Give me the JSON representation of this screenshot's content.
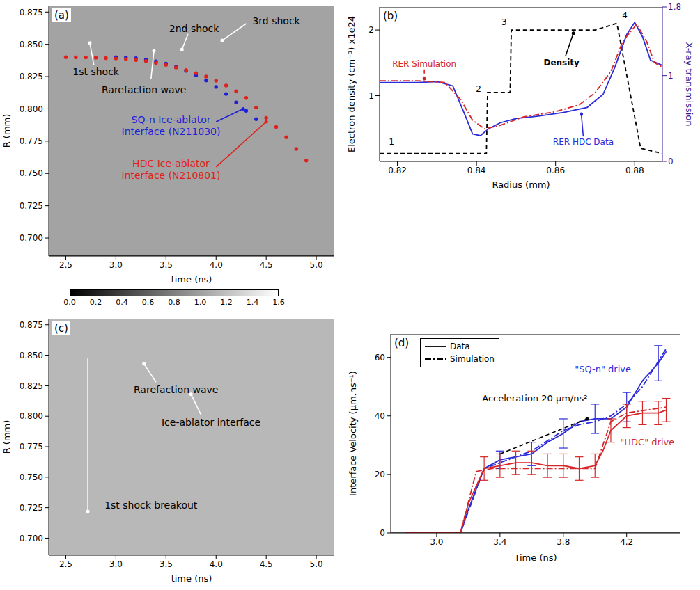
{
  "chart_data": [
    {
      "type": "scatter",
      "panel": "(a)",
      "x_label": "time (ns)",
      "y_label": "R (mm)",
      "xlim": [
        2.33,
        5.18
      ],
      "xticks": [
        2.5,
        {
          "value": 3,
          "label": "3.0"
        },
        3.5,
        {
          "value": 4,
          "label": "4.0"
        },
        4.5,
        {
          "value": 5,
          "label": "5.0"
        }
      ],
      "ylim": [
        0.686,
        0.88
      ],
      "yticks": [
        {
          "value": 0.7,
          "label": "0.700"
        },
        0.725,
        {
          "value": 0.75,
          "label": "0.750"
        },
        0.775,
        {
          "value": 0.8,
          "label": "0.800"
        },
        0.825,
        {
          "value": 0.85,
          "label": "0.850"
        },
        0.875
      ],
      "series": [
        {
          "color": "#1f1fd6",
          "marker": "dot",
          "x": [
            3.0,
            3.1,
            3.2,
            3.3,
            3.4,
            3.5,
            3.6,
            3.7,
            3.8,
            3.9,
            4.0,
            4.1,
            4.2,
            4.3,
            4.4
          ],
          "values": [
            0.84,
            0.8398,
            0.8392,
            0.8382,
            0.8368,
            0.835,
            0.8325,
            0.8295,
            0.826,
            0.822,
            0.817,
            0.8115,
            0.805,
            0.7985,
            0.792
          ]
        },
        {
          "color": "#e0201b",
          "marker": "dot",
          "x": [
            2.5,
            2.6,
            2.7,
            2.8,
            2.9,
            3.0,
            3.1,
            3.2,
            3.3,
            3.4,
            3.5,
            3.6,
            3.7,
            3.8,
            3.9,
            4.0,
            4.1,
            4.2,
            4.3,
            4.4,
            4.5,
            4.6,
            4.7,
            4.8,
            4.9
          ],
          "values": [
            0.84,
            0.8399,
            0.8398,
            0.8396,
            0.8393,
            0.839,
            0.8385,
            0.8378,
            0.837,
            0.8356,
            0.834,
            0.832,
            0.83,
            0.8276,
            0.825,
            0.8218,
            0.818,
            0.8136,
            0.8085,
            0.801,
            0.793,
            0.786,
            0.778,
            0.769,
            0.76
          ]
        }
      ],
      "annotations": [
        {
          "text": "1st shock",
          "x": 2.8,
          "y": 0.829,
          "arrow": [
            [
              2.78,
              0.834
            ],
            [
              2.74,
              0.851
            ]
          ]
        },
        {
          "text": "Rarefaction wave",
          "x": 3.28,
          "y": 0.815,
          "arrow": [
            [
              3.35,
              0.823
            ],
            [
              3.38,
              0.845
            ]
          ]
        },
        {
          "text": "2nd shock",
          "x": 3.78,
          "y": 0.862,
          "arrow": [
            [
              3.72,
              0.858
            ],
            [
              3.66,
              0.846
            ]
          ]
        },
        {
          "text": "3rd shock",
          "x": 4.6,
          "y": 0.868,
          "arrow": [
            [
              4.3,
              0.866
            ],
            [
              4.06,
              0.853
            ]
          ]
        },
        {
          "text": "SQ-n Ice-ablator\nInterface (N211030)",
          "color": "#1f1fd6",
          "x": 3.55,
          "y": 0.787,
          "arrow": [
            [
              4.0,
              0.79
            ],
            [
              4.27,
              0.8
            ]
          ]
        },
        {
          "text": "HDC Ice-ablator\nInterface (N210801)",
          "color": "#e0201b",
          "x": 3.55,
          "y": 0.753,
          "arrow": [
            [
              4.0,
              0.755
            ],
            [
              4.5,
              0.79
            ]
          ]
        }
      ],
      "colorbar": {
        "range": [
          0,
          1.6
        ],
        "ticks": [
          {
            "value": 0,
            "label": "0.0"
          },
          0.2,
          0.4,
          0.6,
          0.8,
          {
            "value": 1,
            "label": "1.0"
          },
          1.2,
          1.4,
          1.6
        ]
      }
    },
    {
      "type": "line",
      "panel": "(b)",
      "x_label": "Radius (mm)",
      "y_label": "Electron density (cm⁻³) x1e24",
      "y2_label": "X-ray transmission",
      "y2_color": "#3b1a91",
      "xlim": [
        0.8155,
        0.887
      ],
      "xticks": [
        0.82,
        0.84,
        0.86,
        0.88
      ],
      "ylim": [
        0,
        2.35
      ],
      "yticks": [
        1,
        2
      ],
      "y2lim": [
        0,
        1.8
      ],
      "y2ticks": [
        0,
        1,
        1.8
      ],
      "series": [
        {
          "color": "#000000",
          "line_style": "dashed",
          "x": [
            0.8155,
            0.8425,
            0.8428,
            0.8485,
            0.8488,
            0.87,
            0.8755,
            0.8815,
            0.887
          ],
          "values": [
            0.12,
            0.12,
            1.05,
            1.05,
            2.0,
            2.0,
            2.1,
            0.2,
            0.12
          ]
        },
        {
          "color": "#2b2bd9",
          "line_style": "solid",
          "axis": "y2",
          "x": [
            0.8155,
            0.825,
            0.83,
            0.834,
            0.837,
            0.839,
            0.841,
            0.843,
            0.846,
            0.85,
            0.856,
            0.862,
            0.868,
            0.872,
            0.875,
            0.878,
            0.88,
            0.882,
            0.884,
            0.887
          ],
          "values": [
            0.92,
            0.92,
            0.93,
            0.88,
            0.55,
            0.32,
            0.3,
            0.38,
            0.45,
            0.5,
            0.53,
            0.57,
            0.63,
            0.78,
            1.1,
            1.48,
            1.62,
            1.45,
            1.18,
            1.12
          ]
        },
        {
          "color": "#d62728",
          "line_style": "dashdot",
          "axis": "y2",
          "x": [
            0.8155,
            0.825,
            0.832,
            0.836,
            0.839,
            0.842,
            0.846,
            0.852,
            0.86,
            0.866,
            0.87,
            0.874,
            0.877,
            0.8805,
            0.883,
            0.885,
            0.887
          ],
          "values": [
            0.94,
            0.94,
            0.92,
            0.72,
            0.48,
            0.38,
            0.42,
            0.52,
            0.58,
            0.66,
            0.8,
            1.05,
            1.4,
            1.6,
            1.4,
            1.15,
            1.1
          ]
        }
      ],
      "annotations": [
        {
          "text": "Density",
          "bold": true,
          "x": 0.8615,
          "y": 1.5,
          "arrow": [
            [
              0.8625,
              1.6
            ],
            [
              0.8645,
              1.95
            ]
          ]
        },
        {
          "text": "RER Simulation",
          "color": "#d62728",
          "x": 0.8268,
          "y": 1.48,
          "arrow": [
            [
              0.8268,
              1.4
            ],
            [
              0.8268,
              1.26
            ]
          ],
          "arrow_style": "dashed"
        },
        {
          "text": "RER HDC Data",
          "color": "#2b2bd9",
          "x": 0.867,
          "y": 0.3,
          "arrow": [
            [
              0.867,
              0.38
            ],
            [
              0.8665,
              0.72
            ]
          ]
        },
        {
          "text": "1",
          "x": 0.8185,
          "y": 0.3
        },
        {
          "text": "2",
          "x": 0.8405,
          "y": 1.1
        },
        {
          "text": "3",
          "x": 0.847,
          "y": 2.12
        },
        {
          "text": "4",
          "x": 0.8775,
          "y": 2.22
        }
      ]
    },
    {
      "type": "image",
      "panel": "(c)",
      "x_label": "time (ns)",
      "y_label": "R (mm)",
      "xlim": [
        2.33,
        5.18
      ],
      "xticks": [
        2.5,
        {
          "value": 3,
          "label": "3.0"
        },
        3.5,
        {
          "value": 4,
          "label": "4.0"
        },
        4.5,
        {
          "value": 5,
          "label": "5.0"
        }
      ],
      "ylim": [
        0.686,
        0.88
      ],
      "yticks": [
        {
          "value": 0.7,
          "label": "0.700"
        },
        0.725,
        {
          "value": 0.75,
          "label": "0.750"
        },
        0.775,
        {
          "value": 0.8,
          "label": "0.800"
        },
        0.825,
        {
          "value": 0.85,
          "label": "0.850"
        },
        0.875
      ],
      "annotations": [
        {
          "text": "Rarefaction wave",
          "x": 3.6,
          "y": 0.822,
          "arrow": [
            [
              3.4,
              0.828
            ],
            [
              3.28,
              0.843
            ]
          ]
        },
        {
          "text": "Ice-ablator interface",
          "x": 3.95,
          "y": 0.795,
          "arrow": [
            [
              3.85,
              0.801
            ],
            [
              3.75,
              0.818
            ]
          ]
        },
        {
          "text": "1st shock breakout",
          "x": 3.35,
          "y": 0.727,
          "arrow": [
            [
              2.72,
              0.848
            ],
            [
              2.72,
              0.722
            ]
          ]
        }
      ]
    },
    {
      "type": "line",
      "panel": "(d)",
      "x_label": "Time (ns)",
      "y_label": "Interface Velocity (μm.ns⁻¹)",
      "xlim": [
        2.71,
        4.54
      ],
      "xticks": [
        {
          "value": 3,
          "label": "3.0"
        },
        3.4,
        3.8,
        4.2
      ],
      "ylim": [
        0,
        68
      ],
      "yticks": [
        0,
        20,
        40,
        60
      ],
      "legend": "upper left",
      "legend_entries": [
        {
          "label": "Data",
          "line_style": "solid"
        },
        {
          "label": "Simulation",
          "line_style": "dashdot"
        }
      ],
      "series": [
        {
          "color": "#2b2bd9",
          "line_style": "solid",
          "x": [
            2.8,
            3.0,
            3.15,
            3.2,
            3.3,
            3.4,
            3.5,
            3.6,
            3.7,
            3.8,
            3.9,
            4.0,
            4.1,
            4.2,
            4.3,
            4.4,
            4.45
          ],
          "values": [
            0,
            0,
            0,
            8,
            22,
            25,
            26,
            27,
            31,
            34,
            38,
            39,
            39,
            43,
            52,
            58,
            62
          ],
          "errors": [
            null,
            null,
            null,
            null,
            null,
            3,
            null,
            4,
            null,
            5,
            null,
            5,
            null,
            5,
            null,
            6,
            null
          ]
        },
        {
          "color": "#2b2bd9",
          "line_style": "dashdot",
          "x": [
            2.8,
            3.15,
            3.3,
            3.4,
            3.6,
            3.8,
            3.9,
            4.0,
            4.1,
            4.2,
            4.3,
            4.45
          ],
          "values": [
            0,
            0,
            22,
            24,
            28,
            35,
            37,
            38,
            40,
            44,
            50,
            63
          ]
        },
        {
          "color": "#d62728",
          "line_style": "solid",
          "x": [
            2.8,
            3.0,
            3.15,
            3.2,
            3.3,
            3.4,
            3.5,
            3.6,
            3.7,
            3.8,
            3.9,
            4.0,
            4.05,
            4.1,
            4.2,
            4.3,
            4.4,
            4.45
          ],
          "values": [
            0,
            0,
            0,
            10,
            22,
            23,
            24,
            24,
            23,
            23,
            22,
            23,
            28,
            35,
            40,
            41,
            41,
            42
          ],
          "errors": [
            null,
            null,
            null,
            null,
            4,
            4,
            4,
            4,
            4,
            4,
            4,
            4,
            null,
            4,
            4,
            4,
            4,
            4
          ]
        },
        {
          "color": "#d62728",
          "line_style": "dashdot",
          "x": [
            2.8,
            3.15,
            3.25,
            3.35,
            3.6,
            3.8,
            4.0,
            4.05,
            4.1,
            4.2,
            4.45
          ],
          "values": [
            0,
            0,
            21,
            22,
            22,
            22,
            22,
            30,
            38,
            41,
            43
          ]
        }
      ],
      "annotations": [
        {
          "text": "Acceleration 20 μm/ns²",
          "color": "#000000",
          "x": 3.62,
          "y": 46,
          "arrow": [
            [
              3.4,
              27
            ],
            [
              3.95,
              39
            ]
          ],
          "arrow_style": "dashed"
        },
        {
          "text": "\"SQ-n\" drive",
          "color": "#2b2bd9",
          "x": 4.05,
          "y": 56
        },
        {
          "text": "\"HDC\" drive",
          "color": "#d62728",
          "x": 4.33,
          "y": 31
        }
      ]
    }
  ]
}
